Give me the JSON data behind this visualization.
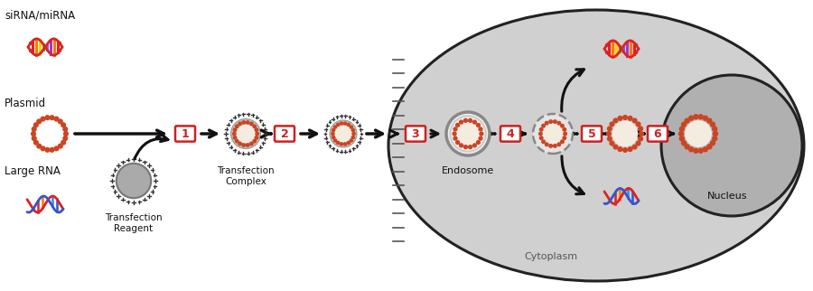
{
  "bg_color": "#ffffff",
  "cell_fill": "#d0d0d0",
  "cell_edge": "#222222",
  "nucleus_fill": "#b0b0b0",
  "nucleus_edge": "#222222",
  "endosome_fill": "#e8e8e8",
  "endosome_edge": "#999999",
  "plasmid_bead_color": "#cc4422",
  "plasmid_inner_color": "#f5ece0",
  "transfect_reagent_fill": "#aaaaaa",
  "transfect_reagent_edge": "#777777",
  "complex_inner_fill": "#c8bfb5",
  "step_box_edge": "#cc2222",
  "step_text_color": "#cc2222",
  "step_box_fill": "#ffffff",
  "arrow_color": "#111111",
  "label_color": "#111111",
  "tick_color": "#555555",
  "labels": {
    "sirna": "siRNA/miRNA",
    "plasmid": "Plasmid",
    "large_rna": "Large RNA",
    "transfection_reagent": "Transfection\nReagent",
    "transfection_complex": "Transfection\nComplex",
    "endosome": "Endosome",
    "cytoplasm": "Cytoplasm",
    "nucleus": "Nucleus"
  },
  "dna_helix_colors": [
    "#cc2222",
    "#ff6600",
    "#ffbb00",
    "#44bb44",
    "#3399ff",
    "#aa44cc"
  ],
  "dna_strand1_color": "#cc3333",
  "dna_strand2_color": "#cc3333",
  "rna_strand1_color": "#cc3333",
  "rna_strand2_color": "#3355cc"
}
